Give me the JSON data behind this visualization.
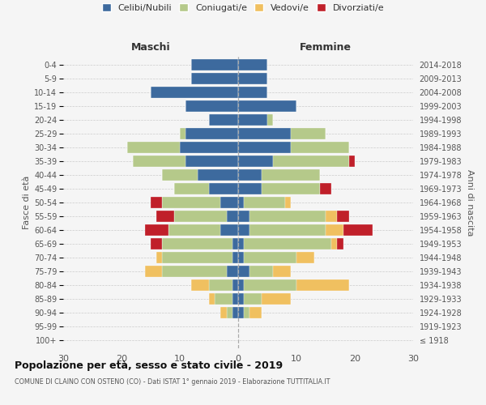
{
  "age_groups": [
    "100+",
    "95-99",
    "90-94",
    "85-89",
    "80-84",
    "75-79",
    "70-74",
    "65-69",
    "60-64",
    "55-59",
    "50-54",
    "45-49",
    "40-44",
    "35-39",
    "30-34",
    "25-29",
    "20-24",
    "15-19",
    "10-14",
    "5-9",
    "0-4"
  ],
  "birth_years": [
    "≤ 1918",
    "1919-1923",
    "1924-1928",
    "1929-1933",
    "1934-1938",
    "1939-1943",
    "1944-1948",
    "1949-1953",
    "1954-1958",
    "1959-1963",
    "1964-1968",
    "1969-1973",
    "1974-1978",
    "1979-1983",
    "1984-1988",
    "1989-1993",
    "1994-1998",
    "1999-2003",
    "2004-2008",
    "2009-2013",
    "2014-2018"
  ],
  "colors": {
    "celibi": "#3d6a9e",
    "coniugati": "#b5c98a",
    "vedovi": "#f0c060",
    "divorziati": "#c0202a"
  },
  "maschi": {
    "celibi": [
      0,
      0,
      1,
      1,
      1,
      2,
      1,
      1,
      3,
      2,
      3,
      5,
      7,
      9,
      10,
      9,
      5,
      9,
      15,
      8,
      8
    ],
    "coniugati": [
      0,
      0,
      1,
      3,
      4,
      11,
      12,
      12,
      9,
      9,
      10,
      6,
      6,
      9,
      9,
      1,
      0,
      0,
      0,
      0,
      0
    ],
    "vedovi": [
      0,
      0,
      1,
      1,
      3,
      3,
      1,
      0,
      0,
      0,
      0,
      0,
      0,
      0,
      0,
      0,
      0,
      0,
      0,
      0,
      0
    ],
    "divorziati": [
      0,
      0,
      0,
      0,
      0,
      0,
      0,
      2,
      4,
      3,
      2,
      0,
      0,
      0,
      0,
      0,
      0,
      0,
      0,
      0,
      0
    ]
  },
  "femmine": {
    "celibi": [
      0,
      0,
      1,
      1,
      1,
      2,
      1,
      1,
      2,
      2,
      1,
      4,
      4,
      6,
      9,
      9,
      5,
      10,
      5,
      5,
      5
    ],
    "coniugati": [
      0,
      0,
      1,
      3,
      9,
      4,
      9,
      15,
      13,
      13,
      7,
      10,
      10,
      13,
      10,
      6,
      1,
      0,
      0,
      0,
      0
    ],
    "vedovi": [
      0,
      0,
      2,
      5,
      9,
      3,
      3,
      1,
      3,
      2,
      1,
      0,
      0,
      0,
      0,
      0,
      0,
      0,
      0,
      0,
      0
    ],
    "divorziati": [
      0,
      0,
      0,
      0,
      0,
      0,
      0,
      1,
      5,
      2,
      0,
      2,
      0,
      1,
      0,
      0,
      0,
      0,
      0,
      0,
      0
    ]
  },
  "xlim": 30,
  "title": "Popolazione per età, sesso e stato civile - 2019",
  "subtitle": "COMUNE DI CLAINO CON OSTENO (CO) - Dati ISTAT 1° gennaio 2019 - Elaborazione TUTTITALIA.IT",
  "ylabel_left": "Fasce di età",
  "ylabel_right": "Anni di nascita",
  "xlabel_left": "Maschi",
  "xlabel_right": "Femmine",
  "legend_labels": [
    "Celibi/Nubili",
    "Coniugati/e",
    "Vedovi/e",
    "Divorziati/e"
  ],
  "background_color": "#f5f5f5"
}
